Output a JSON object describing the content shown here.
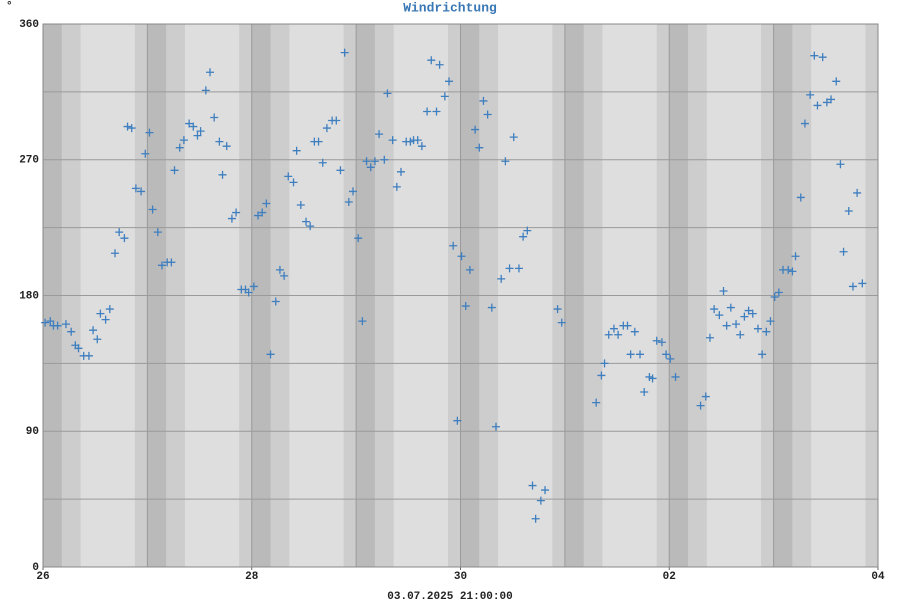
{
  "chart_data": {
    "type": "scatter",
    "title": "Windrichtung",
    "unit": "°",
    "xlabel": "03.07.2025 21:00:00",
    "color": "#3f7fbf",
    "grid": true,
    "xlim": [
      0,
      8
    ],
    "xticks": [
      {
        "value": 0,
        "label": "26"
      },
      {
        "value": 2,
        "label": "28"
      },
      {
        "value": 4,
        "label": "30"
      },
      {
        "value": 6,
        "label": "02"
      },
      {
        "value": 8,
        "label": "04"
      }
    ],
    "ylim": [
      0,
      360
    ],
    "yticks": [
      0,
      90,
      180,
      270,
      360
    ],
    "yminorticks": [
      45,
      135,
      225,
      315
    ],
    "x": [
      0.02,
      0.07,
      0.1,
      0.14,
      0.22,
      0.27,
      0.31,
      0.34,
      0.39,
      0.44,
      0.48,
      0.52,
      0.55,
      0.6,
      0.64,
      0.69,
      0.73,
      0.78,
      0.81,
      0.85,
      0.89,
      0.94,
      0.98,
      1.02,
      1.05,
      1.1,
      1.14,
      1.19,
      1.23,
      1.26,
      1.31,
      1.35,
      1.4,
      1.44,
      1.48,
      1.51,
      1.56,
      1.6,
      1.64,
      1.69,
      1.72,
      1.76,
      1.81,
      1.85,
      1.9,
      1.94,
      1.97,
      2.02,
      2.06,
      2.1,
      2.14,
      2.18,
      2.23,
      2.27,
      2.31,
      2.35,
      2.4,
      2.43,
      2.47,
      2.52,
      2.56,
      2.6,
      2.64,
      2.68,
      2.72,
      2.77,
      2.81,
      2.85,
      2.89,
      2.93,
      2.97,
      3.02,
      3.06,
      3.1,
      3.14,
      3.18,
      3.22,
      3.27,
      3.3,
      3.35,
      3.39,
      3.43,
      3.48,
      3.52,
      3.55,
      3.59,
      3.63,
      3.68,
      3.72,
      3.77,
      3.8,
      3.85,
      3.89,
      3.93,
      3.97,
      4.01,
      4.05,
      4.09,
      4.14,
      4.18,
      4.22,
      4.26,
      4.3,
      4.34,
      4.39,
      4.43,
      4.47,
      4.51,
      4.56,
      4.6,
      4.64,
      4.69,
      4.72,
      4.77,
      4.81,
      4.93,
      4.97,
      5.3,
      5.35,
      5.38,
      5.42,
      5.47,
      5.51,
      5.56,
      5.6,
      5.63,
      5.67,
      5.72,
      5.76,
      5.81,
      5.84,
      5.88,
      5.93,
      5.97,
      6.01,
      6.06,
      6.3,
      6.35,
      6.39,
      6.43,
      6.48,
      6.52,
      6.55,
      6.59,
      6.64,
      6.68,
      6.72,
      6.76,
      6.8,
      6.85,
      6.89,
      6.93,
      6.97,
      7.01,
      7.05,
      7.09,
      7.14,
      7.18,
      7.21,
      7.26,
      7.3,
      7.35,
      7.39,
      7.42,
      7.47,
      7.51,
      7.55,
      7.6,
      7.64,
      7.67,
      7.72,
      7.76,
      7.8,
      7.85
    ],
    "values": [
      162,
      163,
      160,
      160,
      161,
      156,
      147,
      145,
      140,
      140,
      157,
      151,
      168,
      164,
      171,
      208,
      222,
      218,
      292,
      291,
      251,
      249,
      274,
      288,
      237,
      222,
      200,
      202,
      202,
      263,
      278,
      283,
      294,
      292,
      286,
      289,
      316,
      328,
      298,
      282,
      260,
      279,
      231,
      235,
      184,
      184,
      182,
      186,
      233,
      235,
      241,
      141,
      176,
      197,
      193,
      259,
      255,
      276,
      240,
      229,
      226,
      282,
      282,
      268,
      291,
      296,
      296,
      263,
      341,
      242,
      249,
      218,
      163,
      269,
      265,
      269,
      287,
      270,
      314,
      283,
      252,
      262,
      282,
      282,
      283,
      283,
      279,
      302,
      336,
      302,
      333,
      312,
      322,
      213,
      97,
      206,
      173,
      197,
      290,
      278,
      309,
      300,
      172,
      93,
      191,
      269,
      198,
      285,
      198,
      219,
      223,
      54,
      32,
      44,
      51,
      171,
      162,
      109,
      127,
      135,
      154,
      158,
      154,
      160,
      160,
      141,
      156,
      141,
      116,
      126,
      125,
      150,
      149,
      141,
      138,
      126,
      107,
      113,
      152,
      171,
      167,
      183,
      160,
      172,
      161,
      154,
      166,
      170,
      168,
      158,
      141,
      156,
      163,
      179,
      182,
      197,
      197,
      196,
      206,
      245,
      294,
      313,
      339,
      306,
      338,
      308,
      310,
      322,
      267,
      209,
      236,
      186,
      248,
      188
    ]
  }
}
